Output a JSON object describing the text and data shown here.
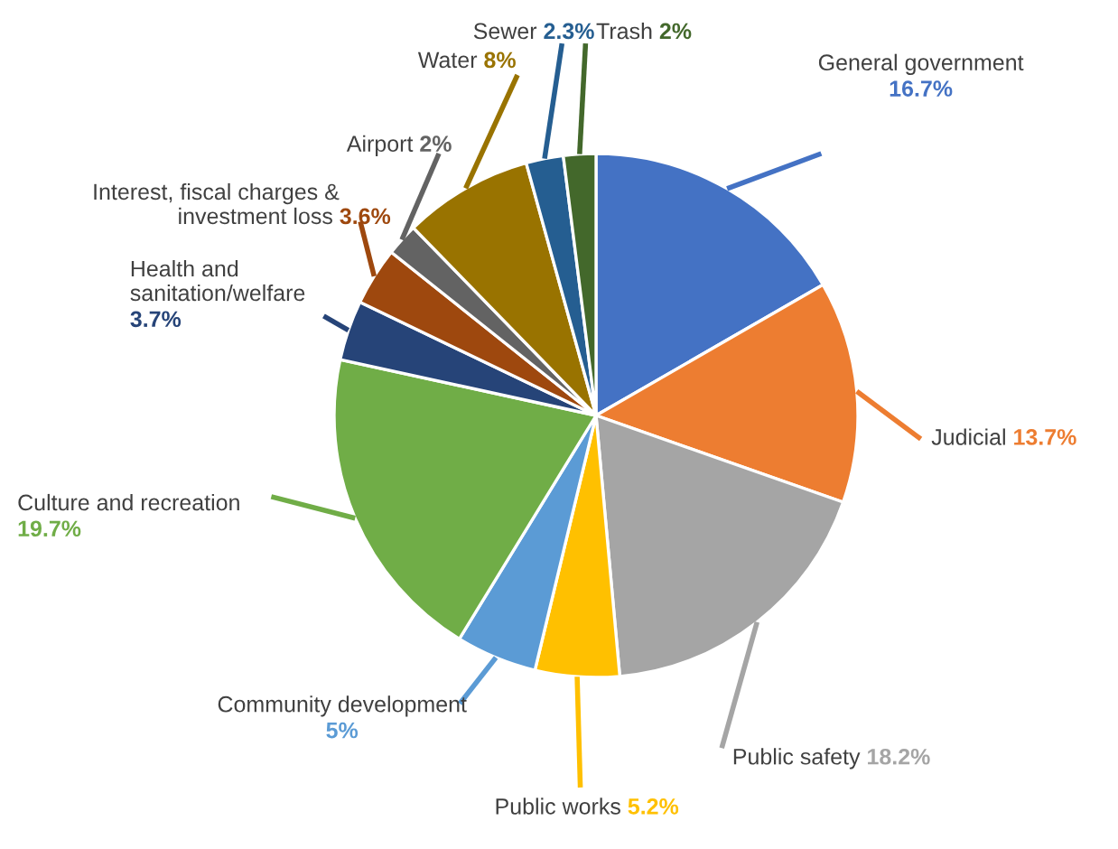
{
  "chart_data": {
    "type": "pie",
    "categories": [
      "General government",
      "Judicial",
      "Public safety",
      "Public works",
      "Community development",
      "Culture and recreation",
      "Health and sanitation/welfare",
      "Interest, fiscal charges & investment loss",
      "Airport",
      "Water",
      "Sewer",
      "Trash"
    ],
    "values": [
      16.7,
      13.7,
      18.2,
      5.2,
      5,
      19.7,
      3.7,
      3.6,
      2,
      8,
      2.3,
      2
    ],
    "value_labels": [
      "16.7%",
      "13.7%",
      "18.2%",
      "5.2%",
      "5%",
      "19.7%",
      "3.7%",
      "3.6%",
      "2%",
      "8%",
      "2.3%",
      "2%"
    ],
    "colors": [
      "#4472c4",
      "#ed7d31",
      "#a5a5a5",
      "#ffc000",
      "#5b9bd5",
      "#70ad47",
      "#264478",
      "#9e480e",
      "#636363",
      "#997300",
      "#255e91",
      "#43682b"
    ]
  }
}
